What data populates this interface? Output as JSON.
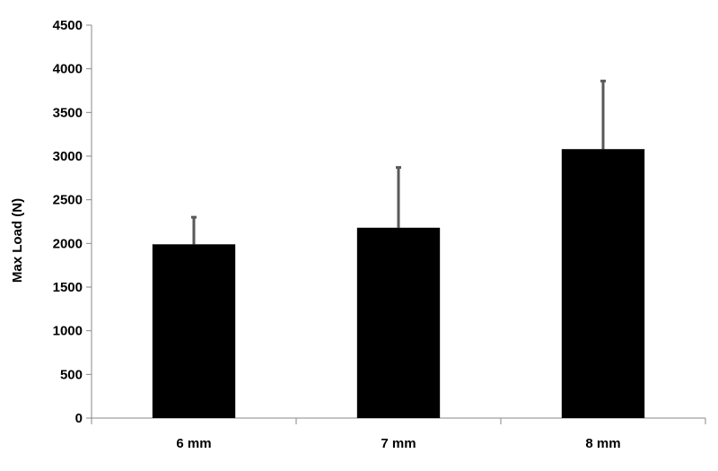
{
  "chart_data": {
    "type": "bar",
    "title": "",
    "xlabel": "",
    "ylabel": "Max Load (N)",
    "categories": [
      "6 mm",
      "7 mm",
      "8 mm"
    ],
    "values": [
      1990,
      2180,
      3080
    ],
    "error_upper": [
      310,
      690,
      780
    ],
    "ylim": [
      0,
      4500
    ],
    "yticks": [
      0,
      500,
      1000,
      1500,
      2000,
      2500,
      3000,
      3500,
      4000,
      4500
    ],
    "ytick_labels": [
      "0",
      "500",
      "1000",
      "1500",
      "2000",
      "2500",
      "3000",
      "3500",
      "4000",
      "4500"
    ],
    "grid": false,
    "legend": "none",
    "colors": {
      "bar": "#000000",
      "error_bar": "#595959",
      "axis": "#888888"
    }
  }
}
